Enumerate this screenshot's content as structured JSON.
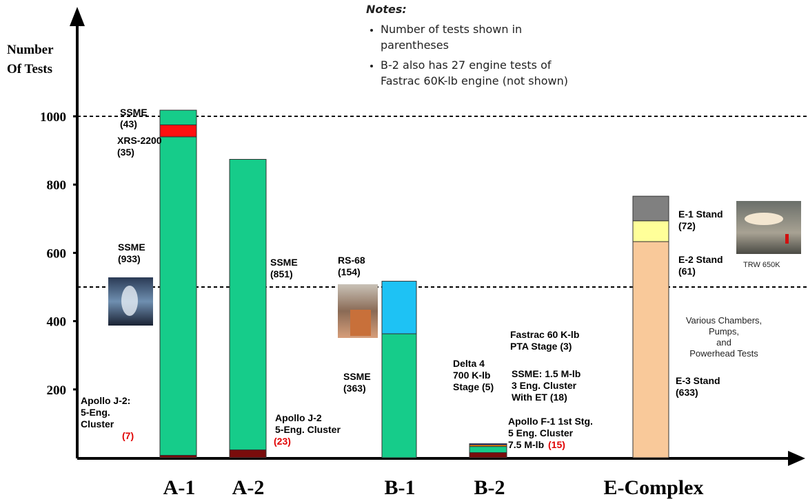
{
  "chart_data": {
    "type": "bar",
    "stacked": true,
    "ylabel": "Number Of Tests",
    "ylim": [
      0,
      1000
    ],
    "yticks": [
      "200",
      "400",
      "600",
      "800",
      "1000"
    ],
    "reference_lines": [
      500,
      1000
    ],
    "categories": [
      "A-1",
      "A-2",
      "B-1",
      "B-2",
      "E-Complex"
    ],
    "stacks": [
      {
        "category": "A-1",
        "segments": [
          {
            "value": 7,
            "color": "#7a0c0c"
          },
          {
            "value": 933,
            "color": "#16cc8a"
          },
          {
            "value": 35,
            "color": "#ff1010"
          },
          {
            "value": 43,
            "color": "#16cc8a"
          }
        ]
      },
      {
        "category": "A-2",
        "segments": [
          {
            "value": 23,
            "color": "#7a0c0c"
          },
          {
            "value": 851,
            "color": "#16cc8a"
          }
        ]
      },
      {
        "category": "B-1",
        "segments": [
          {
            "value": 363,
            "color": "#16cc8a"
          },
          {
            "value": 154,
            "color": "#1ec2f4"
          }
        ]
      },
      {
        "category": "B-2",
        "segments": [
          {
            "value": 15,
            "color": "#7a0c0c"
          },
          {
            "value": 18,
            "color": "#16cc8a"
          },
          {
            "value": 5,
            "color": "#ff8c00"
          },
          {
            "value": 3,
            "color": "#1030e8"
          }
        ]
      },
      {
        "category": "E-Complex",
        "segments": [
          {
            "value": 633,
            "color": "#f9c99a"
          },
          {
            "value": 61,
            "color": "#ffff99"
          },
          {
            "value": 72,
            "color": "#808080"
          }
        ]
      }
    ],
    "annotations": [
      {
        "lines": [
          "SSME",
          "(43)"
        ]
      },
      {
        "lines": [
          "XRS-2200",
          "(35)"
        ]
      },
      {
        "lines": [
          "SSME",
          "(933)"
        ]
      },
      {
        "lines": [
          "Apollo J-2:",
          "5-Eng.",
          "Cluster"
        ],
        "count": "(7)"
      },
      {
        "lines": [
          "SSME",
          "(851)"
        ]
      },
      {
        "lines": [
          "Apollo J-2",
          "5-Eng. Cluster"
        ],
        "count": "(23)"
      },
      {
        "lines": [
          "RS-68",
          "(154)"
        ]
      },
      {
        "lines": [
          "SSME",
          "(363)"
        ]
      },
      {
        "lines": [
          "Fastrac 60 K-lb",
          "PTA Stage (3)"
        ]
      },
      {
        "lines": [
          "Delta 4",
          "700 K-lb",
          "Stage (5)"
        ]
      },
      {
        "lines": [
          "SSME: 1.5 M-lb",
          "3 Eng. Cluster",
          "With ET (18)"
        ]
      },
      {
        "lines": [
          "Apollo F-1 1st Stg.",
          "5 Eng. Cluster",
          "7.5 M-lb"
        ],
        "count": "(15)"
      },
      {
        "lines": [
          "E-1 Stand",
          "(72)"
        ]
      },
      {
        "lines": [
          "E-2 Stand",
          "(61)"
        ]
      },
      {
        "lines": [
          "E-3 Stand",
          "(633)"
        ]
      },
      {
        "lines": [
          "Various Chambers,",
          "Pumps,",
          "and",
          "Powerhead Tests"
        ]
      },
      {
        "lines": [
          "TRW 650K"
        ]
      }
    ]
  },
  "notes": {
    "title": "Notes:",
    "items": [
      "Number of tests shown in parentheses",
      "B-2 also has 27 engine tests of Fastrac 60K-lb engine (not shown)"
    ]
  },
  "colors": {
    "axis": "#000000",
    "count_red": "#e00000"
  }
}
